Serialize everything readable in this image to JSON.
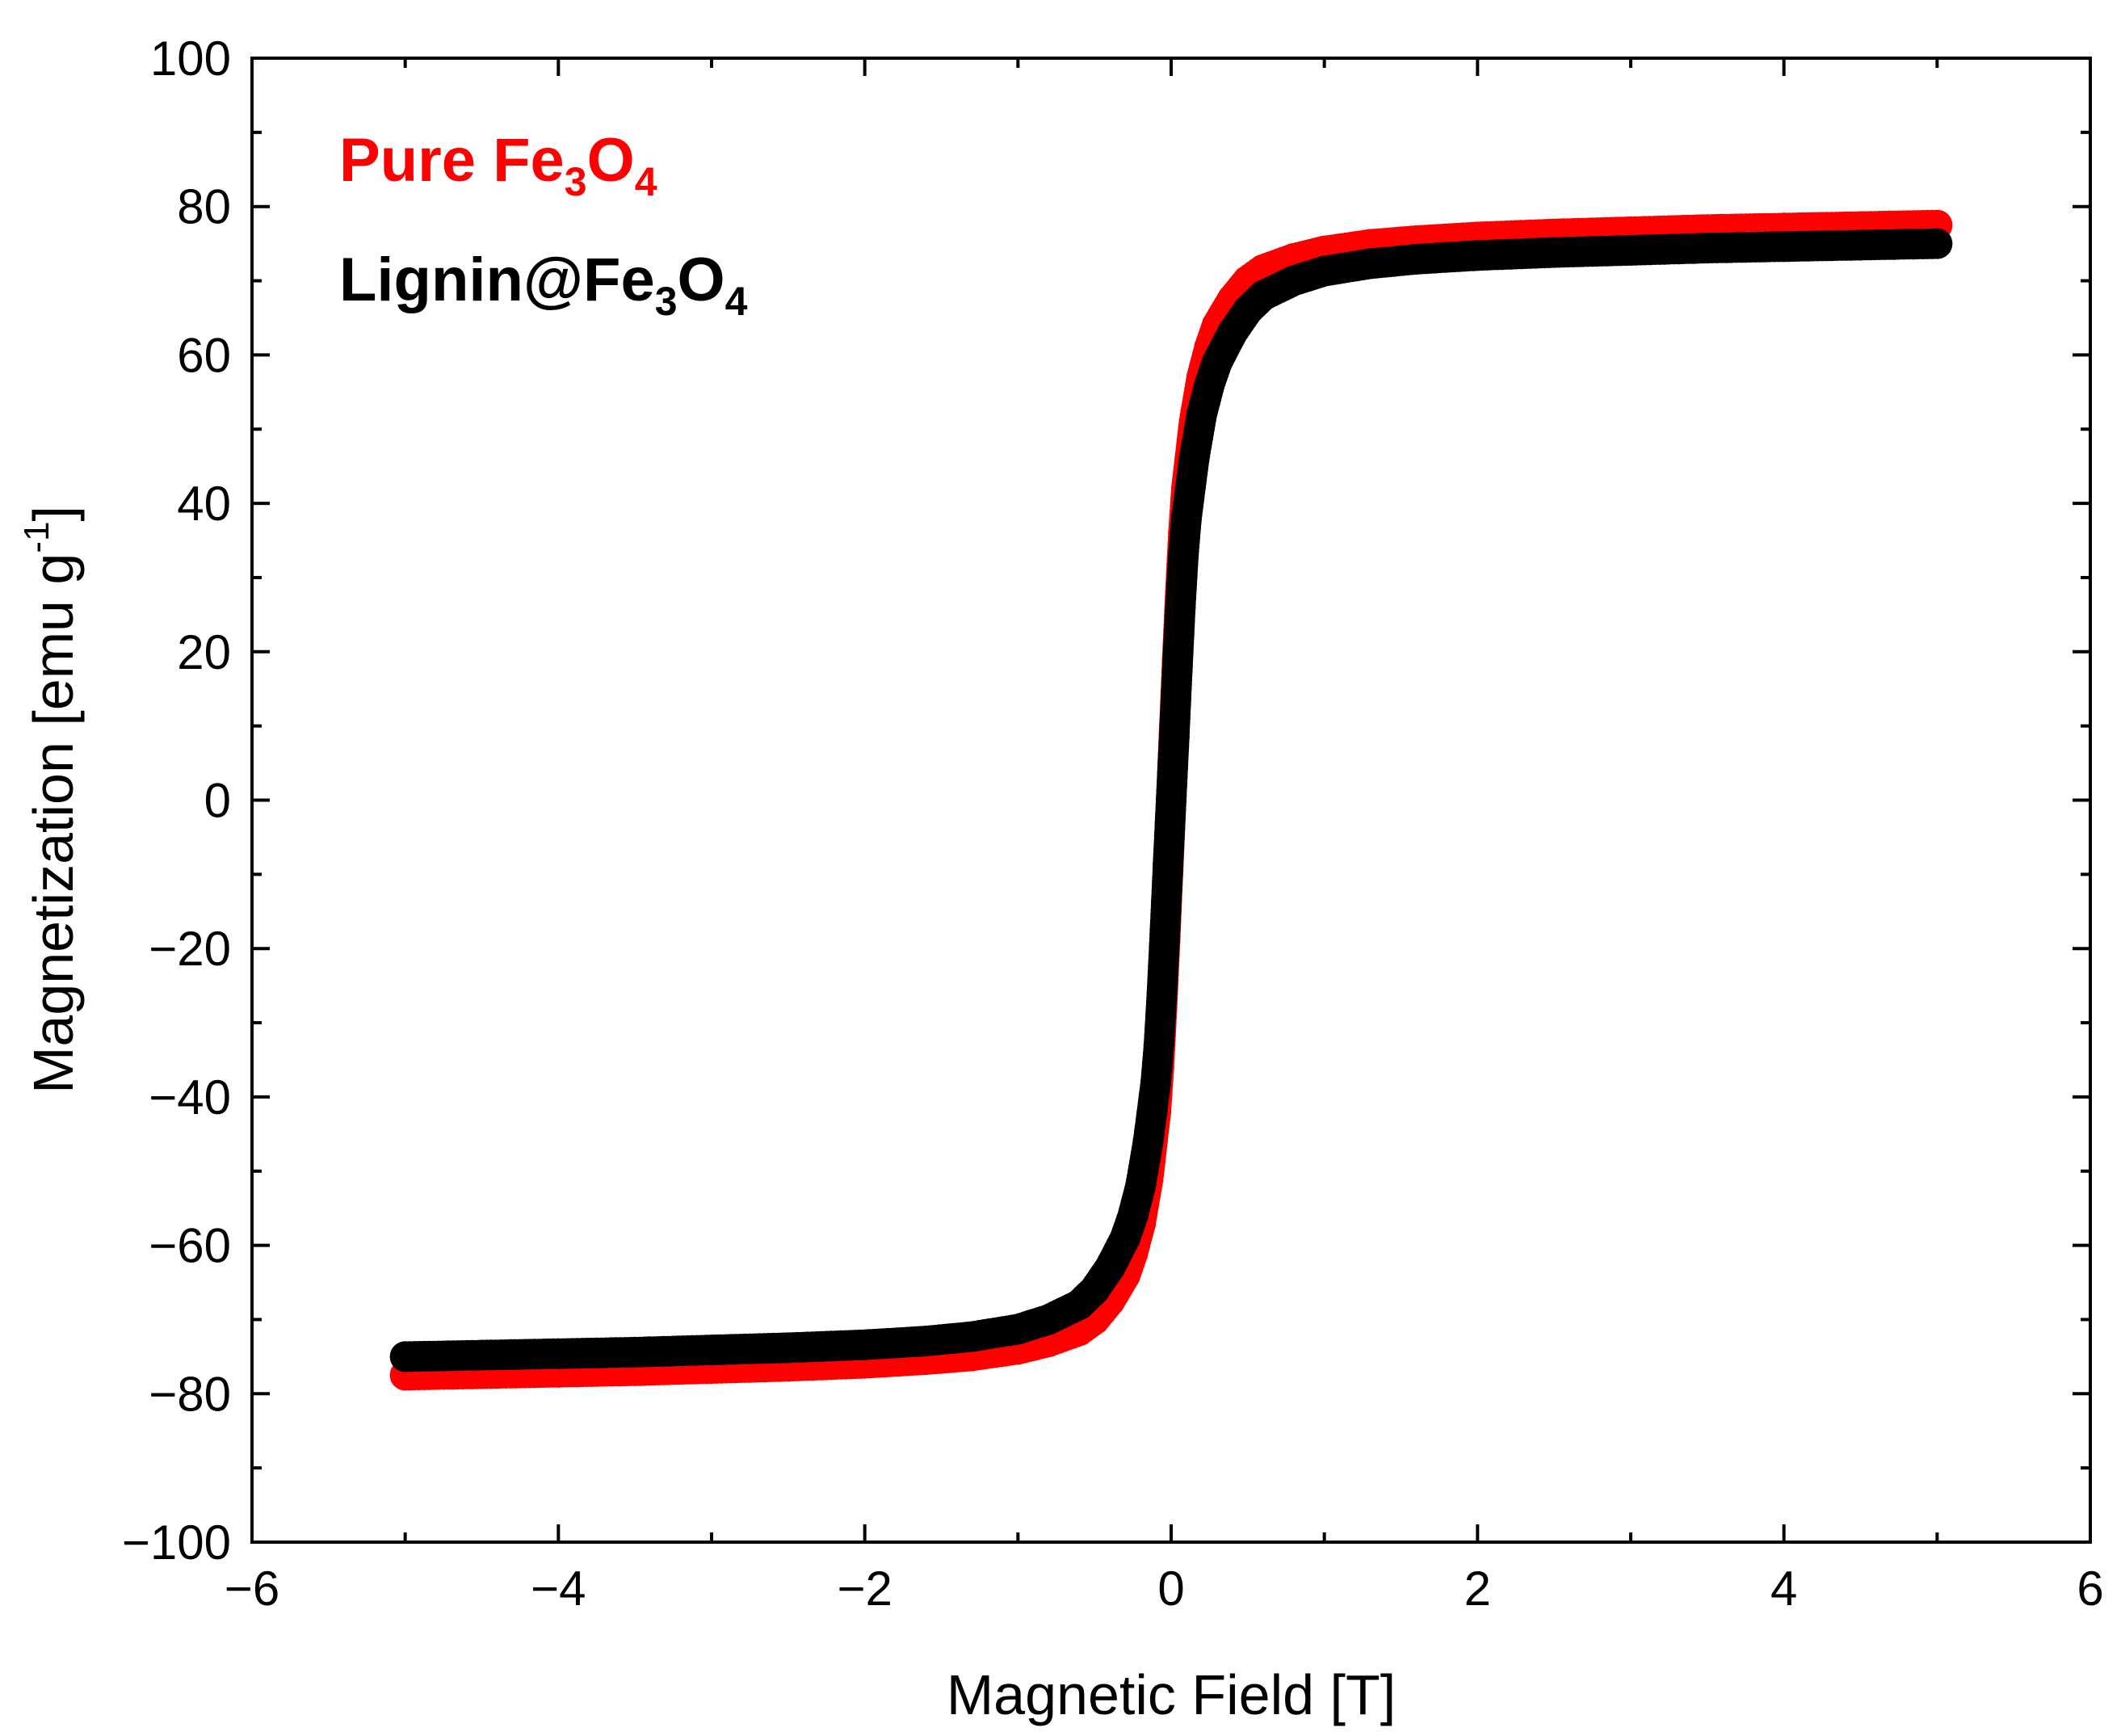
{
  "chart_data": {
    "type": "scatter",
    "title": "",
    "xlabel": "Magnetic Field [T]",
    "ylabel": {
      "main": "Magnetization [emu g",
      "sup": "-1",
      "close": "]"
    },
    "xlim": [
      -6,
      6
    ],
    "ylim": [
      -100,
      100
    ],
    "x_ticks": [
      -6,
      -4,
      -2,
      0,
      2,
      4,
      6
    ],
    "x_tick_labels": [
      "−6",
      "−4",
      "−2",
      "0",
      "2",
      "4",
      "6"
    ],
    "y_ticks": [
      -100,
      -80,
      -60,
      -40,
      -20,
      0,
      20,
      40,
      60,
      80,
      100
    ],
    "y_tick_labels": [
      "−100",
      "−80",
      "−60",
      "−40",
      "−20",
      "0",
      "20",
      "40",
      "60",
      "80",
      "100"
    ],
    "x_minor_step": 1,
    "y_minor_step": 10,
    "grid": false,
    "legend_position": "top-left",
    "series": [
      {
        "name": "Pure Fe3O4",
        "label_parts": {
          "base": "Pure Fe",
          "sub1": "3",
          "mid": "O",
          "sub2": "4"
        },
        "color": "#ff0000",
        "x": [
          -5.0,
          -4.5,
          -4.0,
          -3.5,
          -3.0,
          -2.5,
          -2.0,
          -1.6,
          -1.3,
          -1.0,
          -0.8,
          -0.6,
          -0.5,
          -0.4,
          -0.3,
          -0.25,
          -0.2,
          -0.15,
          -0.1,
          -0.08,
          -0.06,
          -0.04,
          -0.02,
          0.0,
          0.02,
          0.04,
          0.06,
          0.08,
          0.1,
          0.15,
          0.2,
          0.25,
          0.3,
          0.4,
          0.5,
          0.6,
          0.8,
          1.0,
          1.3,
          1.6,
          2.0,
          2.5,
          3.0,
          3.5,
          4.0,
          4.5,
          5.0
        ],
        "y": [
          -77.5,
          -77.3,
          -77.1,
          -76.9,
          -76.6,
          -76.3,
          -75.9,
          -75.4,
          -74.9,
          -74.0,
          -73.0,
          -71.5,
          -70.0,
          -67.5,
          -64.0,
          -61.0,
          -57.0,
          -51.0,
          -42.0,
          -36.0,
          -28.0,
          -19.0,
          -9.5,
          0.0,
          9.5,
          19.0,
          28.0,
          36.0,
          42.0,
          51.0,
          57.0,
          61.0,
          64.0,
          67.5,
          70.0,
          71.5,
          73.0,
          74.0,
          74.9,
          75.4,
          75.9,
          76.3,
          76.6,
          76.9,
          77.1,
          77.3,
          77.5
        ]
      },
      {
        "name": "Lignin@Fe3O4",
        "label_parts": {
          "base": "Lignin@Fe",
          "sub1": "3",
          "mid": "O",
          "sub2": "4"
        },
        "color": "#000000",
        "x": [
          -5.0,
          -4.5,
          -4.0,
          -3.5,
          -3.0,
          -2.5,
          -2.0,
          -1.6,
          -1.3,
          -1.0,
          -0.8,
          -0.6,
          -0.5,
          -0.4,
          -0.3,
          -0.25,
          -0.2,
          -0.15,
          -0.1,
          -0.08,
          -0.06,
          -0.04,
          -0.02,
          0.0,
          0.02,
          0.04,
          0.06,
          0.08,
          0.1,
          0.15,
          0.2,
          0.25,
          0.3,
          0.4,
          0.5,
          0.6,
          0.8,
          1.0,
          1.3,
          1.6,
          2.0,
          2.5,
          3.0,
          3.5,
          4.0,
          4.5,
          5.0
        ],
        "y": [
          -75.0,
          -74.8,
          -74.6,
          -74.4,
          -74.1,
          -73.8,
          -73.4,
          -72.9,
          -72.3,
          -71.3,
          -70.0,
          -68.0,
          -66.0,
          -63.0,
          -59.0,
          -56.0,
          -52.0,
          -46.0,
          -38.0,
          -33.0,
          -26.0,
          -17.5,
          -8.5,
          0.0,
          8.5,
          17.5,
          26.0,
          33.0,
          38.0,
          46.0,
          52.0,
          56.0,
          59.0,
          63.0,
          66.0,
          68.0,
          70.0,
          71.3,
          72.3,
          72.9,
          73.4,
          73.8,
          74.1,
          74.4,
          74.6,
          74.8,
          75.0
        ]
      }
    ]
  }
}
